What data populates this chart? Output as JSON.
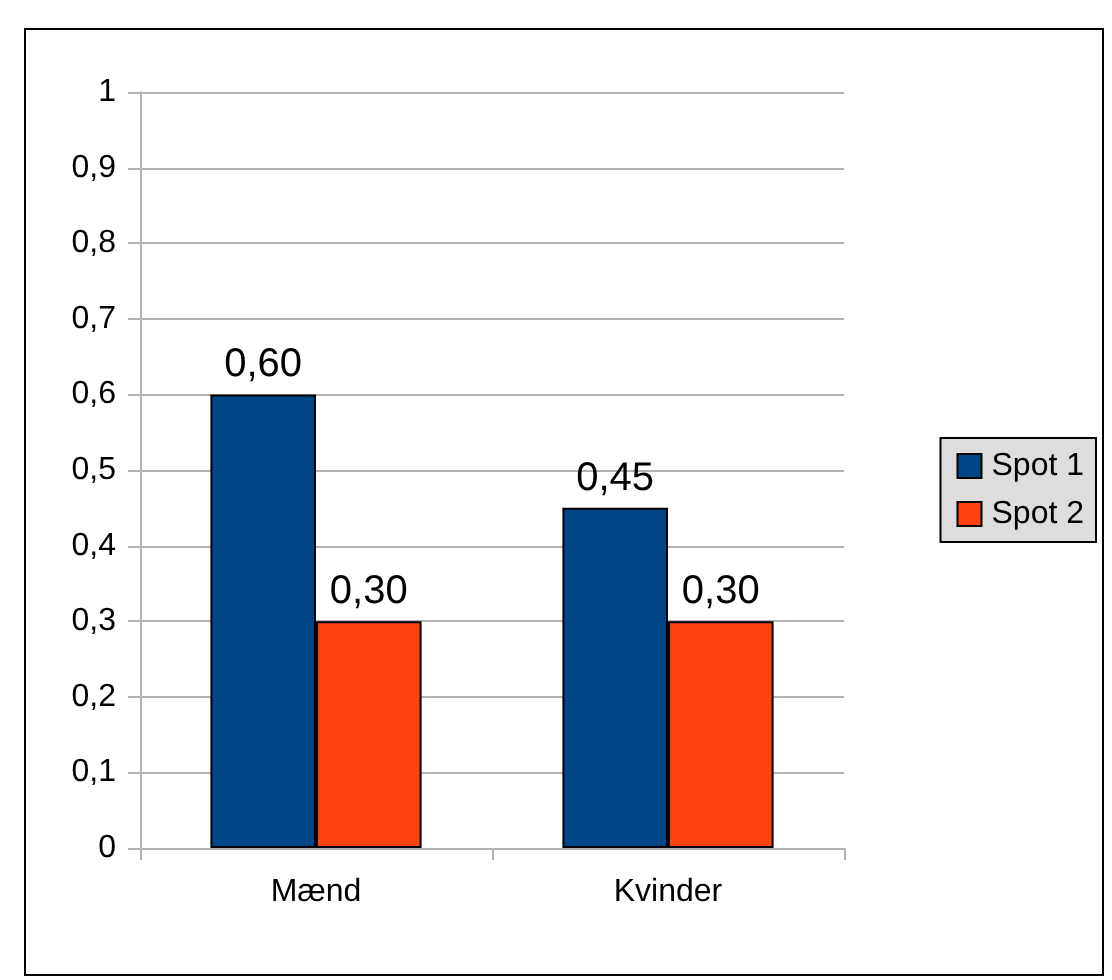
{
  "chart_data": {
    "type": "bar",
    "categories": [
      "Mænd",
      "Kvinder"
    ],
    "series": [
      {
        "name": "Spot 1",
        "color": "#004586",
        "values": [
          0.6,
          0.45
        ],
        "value_labels": [
          "0,60",
          "0,45"
        ]
      },
      {
        "name": "Spot 2",
        "color": "#ff420e",
        "values": [
          0.3,
          0.3
        ],
        "value_labels": [
          "0,30",
          "0,30"
        ]
      }
    ],
    "ylim": [
      0,
      1
    ],
    "yticks": [
      0,
      {
        "value": 0.1,
        "label": "0,1"
      },
      {
        "value": 0.2,
        "label": "0,2"
      },
      {
        "value": 0.3,
        "label": "0,3"
      },
      {
        "value": 0.4,
        "label": "0,4"
      },
      {
        "value": 0.5,
        "label": "0,5"
      },
      {
        "value": 0.6,
        "label": "0,6"
      },
      {
        "value": 0.7,
        "label": "0,7"
      },
      {
        "value": 0.8,
        "label": "0,8"
      },
      {
        "value": 0.9,
        "label": "0,9"
      },
      1
    ],
    "grid": "y",
    "legend": "right"
  }
}
